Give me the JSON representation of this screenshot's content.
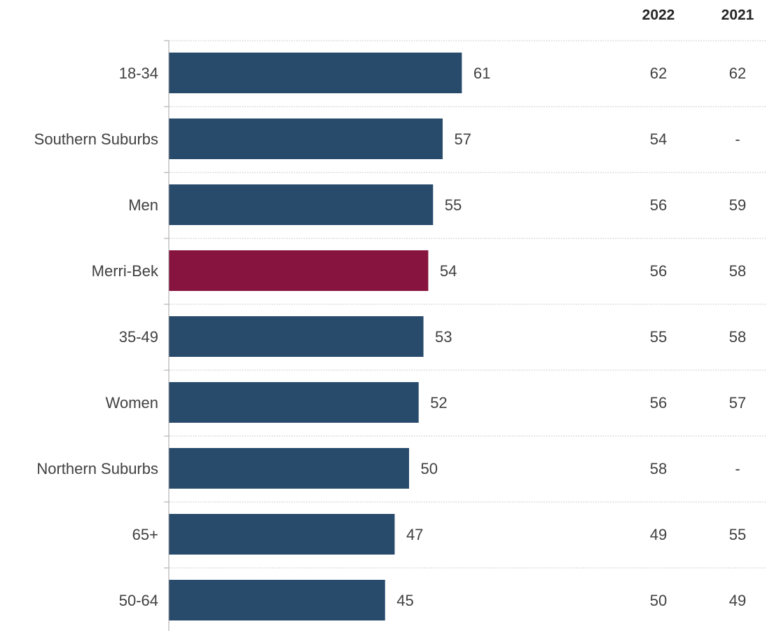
{
  "chart_data": {
    "type": "bar",
    "orientation": "horizontal",
    "categories": [
      "18-34",
      "Southern Suburbs",
      "Men",
      "Merri-Bek",
      "35-49",
      "Women",
      "Northern Suburbs",
      "65+",
      "50-64"
    ],
    "values": [
      61,
      57,
      55,
      54,
      53,
      52,
      50,
      47,
      45
    ],
    "highlight_category": "Merri-Bek",
    "colors": {
      "bar": "#284B6C",
      "highlight": "#87143E",
      "axis": "#A6A6A6",
      "gridline": "#BFBFBF"
    },
    "comparison_columns": [
      {
        "header": "2022",
        "values": [
          "62",
          "54",
          "56",
          "56",
          "55",
          "56",
          "58",
          "49",
          "50"
        ]
      },
      {
        "header": "2021",
        "values": [
          "62",
          "-",
          "59",
          "58",
          "58",
          "57",
          "-",
          "55",
          "49"
        ]
      }
    ],
    "xlim": [
      0,
      100
    ],
    "grid": true,
    "title": "",
    "xlabel": "",
    "ylabel": ""
  }
}
